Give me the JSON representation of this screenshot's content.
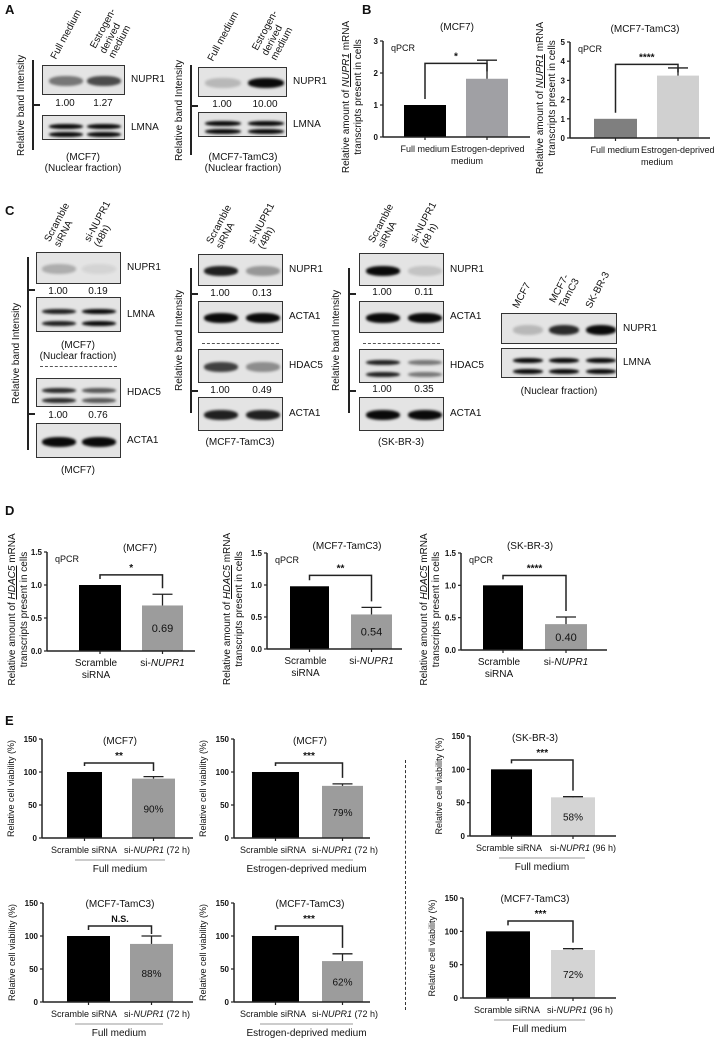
{
  "panel_labels": [
    "A",
    "B",
    "C",
    "D",
    "E"
  ],
  "blots": [
    {
      "id": "a-mcf7",
      "y_label": "Relative band Intensity",
      "lanes": [
        "Full medium",
        "Estrogen-\nderived\nmedium"
      ],
      "proteins": [
        "NUPR1",
        "LMNA"
      ],
      "quant": [
        [
          "1.00",
          "1.27"
        ]
      ],
      "captions": [
        [
          "(MCF7)",
          "(Nuclear fraction)"
        ]
      ]
    },
    {
      "id": "a-tamc3",
      "y_label": "Relative band Intensity",
      "lanes": [
        "Full medium",
        "Estrogen-\nderived\nmedium"
      ],
      "proteins": [
        "NUPR1",
        "LMNA"
      ],
      "quant": [
        [
          "1.00",
          "10.00"
        ]
      ],
      "captions": [
        [
          "(MCF7-TamC3)",
          "(Nuclear fraction)"
        ]
      ]
    },
    {
      "id": "c-mcf7",
      "y_label": "Relative band Intensity",
      "lanes": [
        "Scramble\nsiRNA",
        "si-NUPR1\n(48h)"
      ],
      "proteins": [
        "NUPR1",
        "LMNA",
        "HDAC5",
        "ACTA1"
      ],
      "quant": [
        [
          "1.00",
          "0.19"
        ],
        [
          "1.00",
          "0.76"
        ]
      ],
      "captions": [
        [
          "(MCF7)",
          "(Nuclear fraction)"
        ],
        [
          "(MCF7)"
        ]
      ]
    },
    {
      "id": "c-tamc3",
      "y_label": "Relative band Intensity",
      "lanes": [
        "Scramble\nsiRNA",
        "si-NUPR1\n(48h)"
      ],
      "proteins": [
        "NUPR1",
        "ACTA1",
        "HDAC5",
        "ACTA1"
      ],
      "quant": [
        [
          "1.00",
          "0.13"
        ],
        [
          "1.00",
          "0.49"
        ]
      ],
      "captions": [
        [
          "(MCF7-TamC3)"
        ]
      ]
    },
    {
      "id": "c-skbr3",
      "y_label": "Relative band Intensity",
      "lanes": [
        "Scramble\nsiRNA",
        "si-NUPR1\n(48 h)"
      ],
      "proteins": [
        "NUPR1",
        "ACTA1",
        "HDAC5",
        "ACTA1"
      ],
      "quant": [
        [
          "1.00",
          "0.11"
        ],
        [
          "1.00",
          "0.35"
        ]
      ],
      "captions": [
        [
          "(SK-BR-3)"
        ]
      ]
    },
    {
      "id": "c-lines",
      "y_label": "",
      "lanes": [
        "MCF7",
        "MCF7-\nTamC3",
        "SK-BR-3"
      ],
      "proteins": [
        "NUPR1",
        "LMNA"
      ],
      "quant": [],
      "captions": [
        [
          "(Nuclear fraction)"
        ]
      ]
    }
  ],
  "dashed_separator": true,
  "chart_data": [
    {
      "id": "B1",
      "type": "bar",
      "title": "(MCF7)",
      "note": "qPCR",
      "ylabel": {
        "pre": "Relative amount of ",
        "gene": "NUPR1",
        "post": " mRNA",
        "line2": "transcripts present in cells"
      },
      "categories": [
        [
          "Full medium"
        ],
        [
          "Estrogen-deprived",
          "medium"
        ]
      ],
      "values": [
        1.0,
        1.82
      ],
      "errors": [
        0,
        0.58
      ],
      "colors": [
        "#000000",
        "#a0a0a4"
      ],
      "ylim": [
        0,
        3
      ],
      "yticks": [
        "0",
        "1",
        "2",
        "3"
      ],
      "significance": "*",
      "bar_labels": []
    },
    {
      "id": "B2",
      "type": "bar",
      "title": "(MCF7-TamC3)",
      "note": "qPCR",
      "ylabel": {
        "pre": "Relative amount of ",
        "gene": "NUPR1",
        "post": " mRNA",
        "line2": "transcripts present in cells"
      },
      "categories": [
        [
          "Full medium"
        ],
        [
          "Estrogen-deprived",
          "medium"
        ]
      ],
      "values": [
        1.0,
        3.25
      ],
      "errors": [
        0,
        0.4
      ],
      "colors": [
        "#7f7f7f",
        "#d0d0d0"
      ],
      "ylim": [
        0,
        5
      ],
      "yticks": [
        "0",
        "1",
        "2",
        "3",
        "4",
        "5"
      ],
      "significance": "****",
      "bar_labels": []
    },
    {
      "id": "D1",
      "type": "bar",
      "title": "(MCF7)",
      "note": "qPCR",
      "ylabel": {
        "pre": "Relative amount of ",
        "gene": "HDAC5",
        "post": " mRNA",
        "line2": "transcripts present in cells"
      },
      "categories": [
        [
          "Scramble",
          "siRNA"
        ],
        [
          "si-NUPR1"
        ]
      ],
      "values": [
        1.0,
        0.69
      ],
      "errors": [
        0,
        0.17
      ],
      "colors": [
        "#000000",
        "#9c9c9c"
      ],
      "ylim": [
        0,
        1.5
      ],
      "yticks": [
        "0.0",
        "0.5",
        "1.0",
        "1.5"
      ],
      "significance": "*",
      "bar_labels": [
        "",
        "0.69"
      ]
    },
    {
      "id": "D2",
      "type": "bar",
      "title": "(MCF7-TamC3)",
      "note": "qPCR",
      "ylabel": {
        "pre": "Relative amount of ",
        "gene": "HDAC5",
        "post": " mRNA",
        "line2": "transcripts present in cells"
      },
      "categories": [
        [
          "Scramble",
          "siRNA"
        ],
        [
          "si-NUPR1"
        ]
      ],
      "values": [
        0.98,
        0.54
      ],
      "errors": [
        0,
        0.11
      ],
      "colors": [
        "#000000",
        "#9c9c9c"
      ],
      "ylim": [
        0,
        1.5
      ],
      "yticks": [
        "0.0",
        "0.5",
        "1.0",
        "1.5"
      ],
      "significance": "**",
      "bar_labels": [
        "",
        "0.54"
      ]
    },
    {
      "id": "D3",
      "type": "bar",
      "title": "(SK-BR-3)",
      "note": "qPCR",
      "ylabel": {
        "pre": "Relative amount of ",
        "gene": "HDAC5",
        "post": " mRNA",
        "line2": "transcripts present in cells"
      },
      "categories": [
        [
          "Scramble",
          "siRNA"
        ],
        [
          "si-NUPR1"
        ]
      ],
      "values": [
        1.0,
        0.4
      ],
      "errors": [
        0,
        0.11
      ],
      "colors": [
        "#000000",
        "#9c9c9c"
      ],
      "ylim": [
        0,
        1.5
      ],
      "yticks": [
        "0.0",
        "0.5",
        "1.0",
        "1.5"
      ],
      "significance": "****",
      "bar_labels": [
        "",
        "0.40"
      ]
    },
    {
      "id": "E1",
      "type": "bar",
      "title": "(MCF7)",
      "ylabel": {
        "pre": "Relative cell viability (%)"
      },
      "categories": [
        [
          "Scramble siRNA"
        ],
        [
          "si-NUPR1 (72 h)"
        ]
      ],
      "group": "Full medium",
      "values": [
        100,
        90
      ],
      "errors": [
        0,
        3
      ],
      "colors": [
        "#000000",
        "#9c9c9c"
      ],
      "ylim": [
        0,
        150
      ],
      "yticks": [
        "0",
        "50",
        "100",
        "150"
      ],
      "significance": "**",
      "bar_labels": [
        "",
        "90%"
      ]
    },
    {
      "id": "E2",
      "type": "bar",
      "title": "(MCF7)",
      "ylabel": {
        "pre": "Relative cell viability (%)"
      },
      "categories": [
        [
          "Scramble siRNA"
        ],
        [
          "si-NUPR1 (72 h)"
        ]
      ],
      "group": "Estrogen-deprived medium",
      "values": [
        100,
        79
      ],
      "errors": [
        0,
        3
      ],
      "colors": [
        "#000000",
        "#9c9c9c"
      ],
      "ylim": [
        0,
        150
      ],
      "yticks": [
        "0",
        "50",
        "100",
        "150"
      ],
      "significance": "***",
      "bar_labels": [
        "",
        "79%"
      ]
    },
    {
      "id": "E3",
      "type": "bar",
      "title": "(SK-BR-3)",
      "ylabel": {
        "pre": "Relative cell viability (%)"
      },
      "categories": [
        [
          "Scramble siRNA"
        ],
        [
          "si-NUPR1 (96 h)"
        ]
      ],
      "group": "Full medium",
      "values": [
        100,
        58
      ],
      "errors": [
        0,
        1
      ],
      "colors": [
        "#000000",
        "#d4d4d4"
      ],
      "ylim": [
        0,
        150
      ],
      "yticks": [
        "0",
        "50",
        "100",
        "150"
      ],
      "significance": "***",
      "bar_labels": [
        "",
        "58%"
      ]
    },
    {
      "id": "E4",
      "type": "bar",
      "title": "(MCF7-TamC3)",
      "ylabel": {
        "pre": "Relative cell viability (%)"
      },
      "categories": [
        [
          "Scramble siRNA"
        ],
        [
          "si-NUPR1 (72 h)"
        ]
      ],
      "group": "Full medium",
      "values": [
        100,
        88
      ],
      "errors": [
        0,
        12
      ],
      "colors": [
        "#000000",
        "#9c9c9c"
      ],
      "ylim": [
        0,
        150
      ],
      "yticks": [
        "0",
        "50",
        "100",
        "150"
      ],
      "significance": "N.S.",
      "bar_labels": [
        "",
        "88%"
      ]
    },
    {
      "id": "E5",
      "type": "bar",
      "title": "(MCF7-TamC3)",
      "ylabel": {
        "pre": "Relative cell viability (%)"
      },
      "categories": [
        [
          "Scramble siRNA"
        ],
        [
          "si-NUPR1 (72 h)"
        ]
      ],
      "group": "Estrogen-deprived medium",
      "values": [
        100,
        62
      ],
      "errors": [
        0,
        11
      ],
      "colors": [
        "#000000",
        "#9c9c9c"
      ],
      "ylim": [
        0,
        150
      ],
      "yticks": [
        "0",
        "50",
        "100",
        "150"
      ],
      "significance": "***",
      "bar_labels": [
        "",
        "62%"
      ]
    },
    {
      "id": "E6",
      "type": "bar",
      "title": "(MCF7-TamC3)",
      "ylabel": {
        "pre": "Relative cell viability (%)"
      },
      "categories": [
        [
          "Scramble siRNA"
        ],
        [
          "si-NUPR1 (96 h)"
        ]
      ],
      "group": "Full medium",
      "values": [
        100,
        72
      ],
      "errors": [
        0,
        2
      ],
      "colors": [
        "#000000",
        "#d4d4d4"
      ],
      "ylim": [
        0,
        150
      ],
      "yticks": [
        "0",
        "50",
        "100",
        "150"
      ],
      "significance": "***",
      "bar_labels": [
        "",
        "72%"
      ]
    }
  ]
}
